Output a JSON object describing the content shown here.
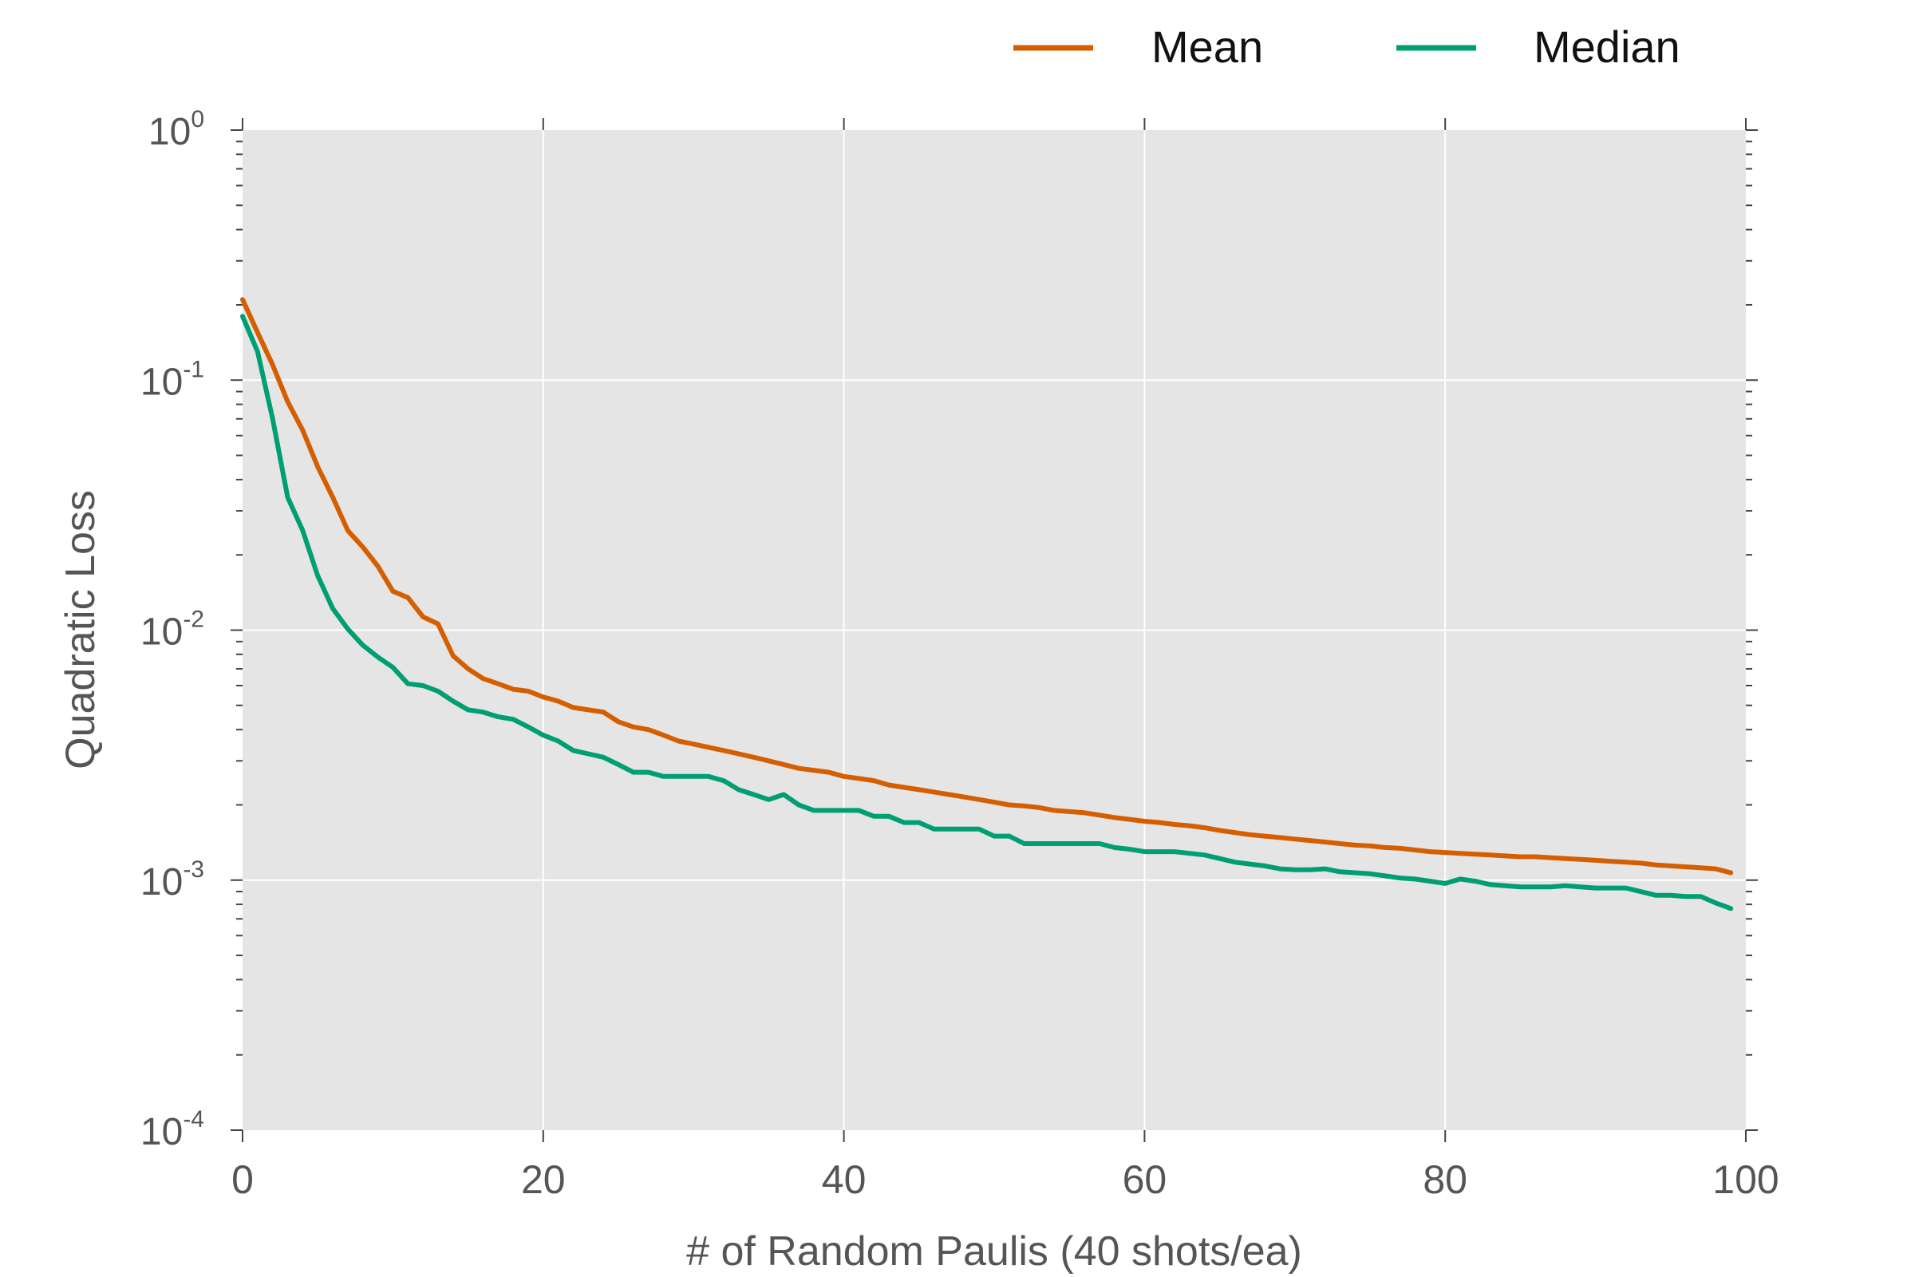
{
  "chart_data": {
    "type": "line",
    "title": "",
    "xlabel": "# of Random Paulis (40 shots/ea)",
    "ylabel": "Quadratic Loss",
    "xlim": [
      0,
      100
    ],
    "ylim": [
      0.0001,
      1
    ],
    "yscale": "log",
    "grid": true,
    "legend_position": "top-right, outside plot",
    "x_ticks": [
      0,
      20,
      40,
      60,
      80,
      100
    ],
    "x_tick_labels": [
      "0",
      "20",
      "40",
      "60",
      "80",
      "100"
    ],
    "y_ticks": [
      {
        "value": 1,
        "mantissa": "10",
        "exponent": "0"
      },
      {
        "value": 0.1,
        "mantissa": "10",
        "exponent": "-1"
      },
      {
        "value": 0.01,
        "mantissa": "10",
        "exponent": "-2"
      },
      {
        "value": 0.001,
        "mantissa": "10",
        "exponent": "-3"
      },
      {
        "value": 0.0001,
        "mantissa": "10",
        "exponent": "-4"
      }
    ],
    "x": [
      0,
      1,
      2,
      3,
      4,
      5,
      6,
      7,
      8,
      9,
      10,
      11,
      12,
      13,
      14,
      15,
      16,
      17,
      18,
      19,
      20,
      21,
      22,
      23,
      24,
      25,
      26,
      27,
      28,
      29,
      30,
      31,
      32,
      33,
      34,
      35,
      36,
      37,
      38,
      39,
      40,
      41,
      42,
      43,
      44,
      45,
      46,
      47,
      48,
      49,
      50,
      51,
      52,
      53,
      54,
      55,
      56,
      57,
      58,
      59,
      60,
      61,
      62,
      63,
      64,
      65,
      66,
      67,
      68,
      69,
      70,
      71,
      72,
      73,
      74,
      75,
      76,
      77,
      78,
      79,
      80,
      81,
      82,
      83,
      84,
      85,
      86,
      87,
      88,
      89,
      90,
      91,
      92,
      93,
      94,
      95,
      96,
      97,
      98,
      99
    ],
    "series": [
      {
        "name": "Mean",
        "color": "#d55e00",
        "values": [
          0.21,
          0.155,
          0.115,
          0.082,
          0.063,
          0.045,
          0.034,
          0.025,
          0.0215,
          0.018,
          0.0143,
          0.0135,
          0.0113,
          0.0106,
          0.0079,
          0.007,
          0.0064,
          0.0061,
          0.0058,
          0.0057,
          0.0054,
          0.0052,
          0.0049,
          0.0048,
          0.0047,
          0.0043,
          0.0041,
          0.004,
          0.0038,
          0.0036,
          0.0035,
          0.0034,
          0.0033,
          0.0032,
          0.0031,
          0.003,
          0.0029,
          0.0028,
          0.00275,
          0.0027,
          0.0026,
          0.00255,
          0.0025,
          0.0024,
          0.00235,
          0.0023,
          0.00225,
          0.0022,
          0.00215,
          0.0021,
          0.00205,
          0.002,
          0.00198,
          0.00195,
          0.0019,
          0.00188,
          0.00186,
          0.00182,
          0.00178,
          0.00175,
          0.00172,
          0.0017,
          0.00167,
          0.00165,
          0.00162,
          0.00158,
          0.00155,
          0.00152,
          0.0015,
          0.00148,
          0.00146,
          0.00144,
          0.00142,
          0.0014,
          0.00138,
          0.00137,
          0.00135,
          0.00134,
          0.00132,
          0.0013,
          0.00129,
          0.00128,
          0.00127,
          0.00126,
          0.00125,
          0.00124,
          0.00124,
          0.00123,
          0.00122,
          0.00121,
          0.0012,
          0.00119,
          0.00118,
          0.00117,
          0.00115,
          0.00114,
          0.00113,
          0.00112,
          0.00111,
          0.00107
        ]
      },
      {
        "name": "Median",
        "color": "#009e73",
        "values": [
          0.18,
          0.13,
          0.07,
          0.034,
          0.025,
          0.0165,
          0.0122,
          0.0101,
          0.0087,
          0.0078,
          0.0071,
          0.0061,
          0.006,
          0.0057,
          0.0052,
          0.0048,
          0.0047,
          0.0045,
          0.0044,
          0.0041,
          0.0038,
          0.0036,
          0.0033,
          0.0032,
          0.0031,
          0.0029,
          0.0027,
          0.0027,
          0.0026,
          0.0026,
          0.0026,
          0.0026,
          0.0025,
          0.0023,
          0.0022,
          0.0021,
          0.0022,
          0.002,
          0.0019,
          0.0019,
          0.0019,
          0.0019,
          0.0018,
          0.0018,
          0.0017,
          0.0017,
          0.0016,
          0.0016,
          0.0016,
          0.0016,
          0.0015,
          0.0015,
          0.0014,
          0.0014,
          0.0014,
          0.0014,
          0.0014,
          0.0014,
          0.00135,
          0.00133,
          0.0013,
          0.0013,
          0.0013,
          0.00128,
          0.00126,
          0.00122,
          0.00118,
          0.00116,
          0.00114,
          0.00111,
          0.0011,
          0.0011,
          0.00111,
          0.00108,
          0.00107,
          0.00106,
          0.00104,
          0.00102,
          0.00101,
          0.00099,
          0.00097,
          0.00101,
          0.00099,
          0.00096,
          0.00095,
          0.00094,
          0.00094,
          0.00094,
          0.00095,
          0.00094,
          0.00093,
          0.00093,
          0.00093,
          0.0009,
          0.00087,
          0.00087,
          0.00086,
          0.00086,
          0.00081,
          0.00077
        ]
      }
    ]
  }
}
